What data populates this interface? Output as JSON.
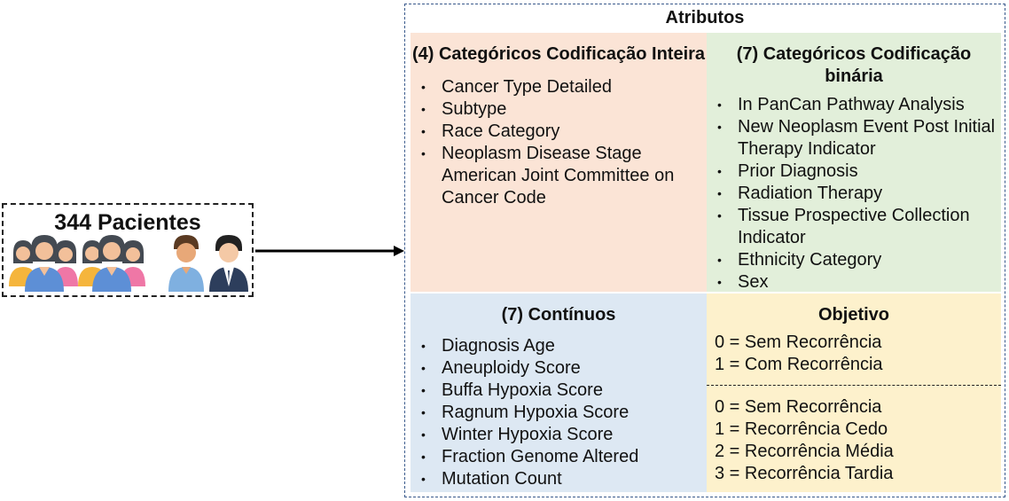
{
  "patients": {
    "label": "344 Pacientes"
  },
  "attributes": {
    "title": "Atributos",
    "integer_categorical": {
      "title": "(4) Categóricos Codificação Inteira",
      "items": [
        "Cancer Type Detailed",
        "Subtype",
        "Race Category",
        "Neoplasm Disease Stage American Joint Committee on Cancer Code"
      ]
    },
    "binary_categorical": {
      "title": "(7) Categóricos Codificação binária",
      "items": [
        "In PanCan Pathway Analysis",
        "New Neoplasm Event Post Initial Therapy Indicator",
        "Prior Diagnosis",
        "Radiation Therapy",
        "Tissue Prospective Collection Indicator",
        "Ethnicity Category",
        "Sex"
      ]
    },
    "continuous": {
      "title": "(7) Contínuos",
      "items": [
        "Diagnosis Age",
        "Aneuploidy Score",
        "Buffa Hypoxia Score",
        "Ragnum Hypoxia Score",
        "Winter Hypoxia Score",
        "Fraction Genome Altered",
        "Mutation Count"
      ]
    },
    "objective": {
      "title": "Objetivo",
      "binary": [
        "0 = Sem Recorrência",
        "1 = Com Recorrência"
      ],
      "multiclass": [
        "0 = Sem Recorrência",
        "1 = Recorrência Cedo",
        "2 = Recorrência Média",
        "3 = Recorrência Tardia"
      ]
    }
  }
}
